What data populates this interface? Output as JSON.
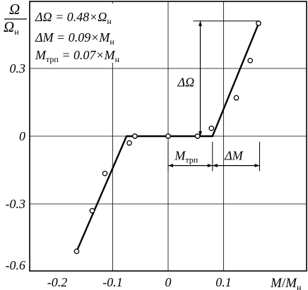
{
  "chart_data": {
    "type": "line",
    "title": "",
    "xlabel": {
      "num": "M",
      "slash": "/",
      "den": "M",
      "den_sub": "н"
    },
    "ylabel": {
      "num": "Ω",
      "den": "Ω",
      "den_sub": "н"
    },
    "xlim": [
      -0.2,
      0.22
    ],
    "ylim": [
      -0.6,
      0.6
    ],
    "grid": true,
    "x_ticks": [
      {
        "value": -0.2,
        "label": "-0.2"
      },
      {
        "value": -0.1,
        "label": "-0.1"
      },
      {
        "value": 0,
        "label": "0"
      },
      {
        "value": 0.1,
        "label": "0.1"
      }
    ],
    "y_ticks": [
      {
        "value": 0.3,
        "label": "0.3"
      },
      {
        "value": 0,
        "label": "0"
      },
      {
        "value": -0.3,
        "label": "-0.3"
      },
      {
        "value": -0.6,
        "label": "-0.6"
      }
    ],
    "series": [
      {
        "kind": "line",
        "points": [
          [
            -0.165,
            -0.51
          ],
          [
            -0.075,
            0.0
          ],
          [
            0.08,
            0.0
          ],
          [
            0.165,
            0.51
          ]
        ]
      },
      {
        "kind": "markers",
        "points": [
          [
            -0.165,
            -0.51
          ],
          [
            -0.137,
            -0.33
          ],
          [
            -0.114,
            -0.165
          ],
          [
            -0.07,
            -0.03
          ],
          [
            -0.06,
            0.0
          ],
          [
            0.0,
            0.0
          ],
          [
            0.053,
            0.0
          ],
          [
            0.078,
            0.035
          ],
          [
            0.123,
            0.17
          ],
          [
            0.148,
            0.335
          ],
          [
            0.163,
            0.5
          ]
        ]
      }
    ],
    "legend_text": [
      {
        "lhs": "ΔΩ = 0.48×Ω",
        "sub": "н"
      },
      {
        "lhs": "ΔM = 0.09×M",
        "sub": "н"
      },
      {
        "lhs": "M",
        "lhs_sub": "трп",
        "rhs": " = 0.07×M",
        "sub": "н"
      }
    ],
    "annotations": {
      "delta_omega": "ΔΩ",
      "m_trp": {
        "main": "M",
        "sub": "трп"
      },
      "delta_m": "ΔM"
    }
  }
}
